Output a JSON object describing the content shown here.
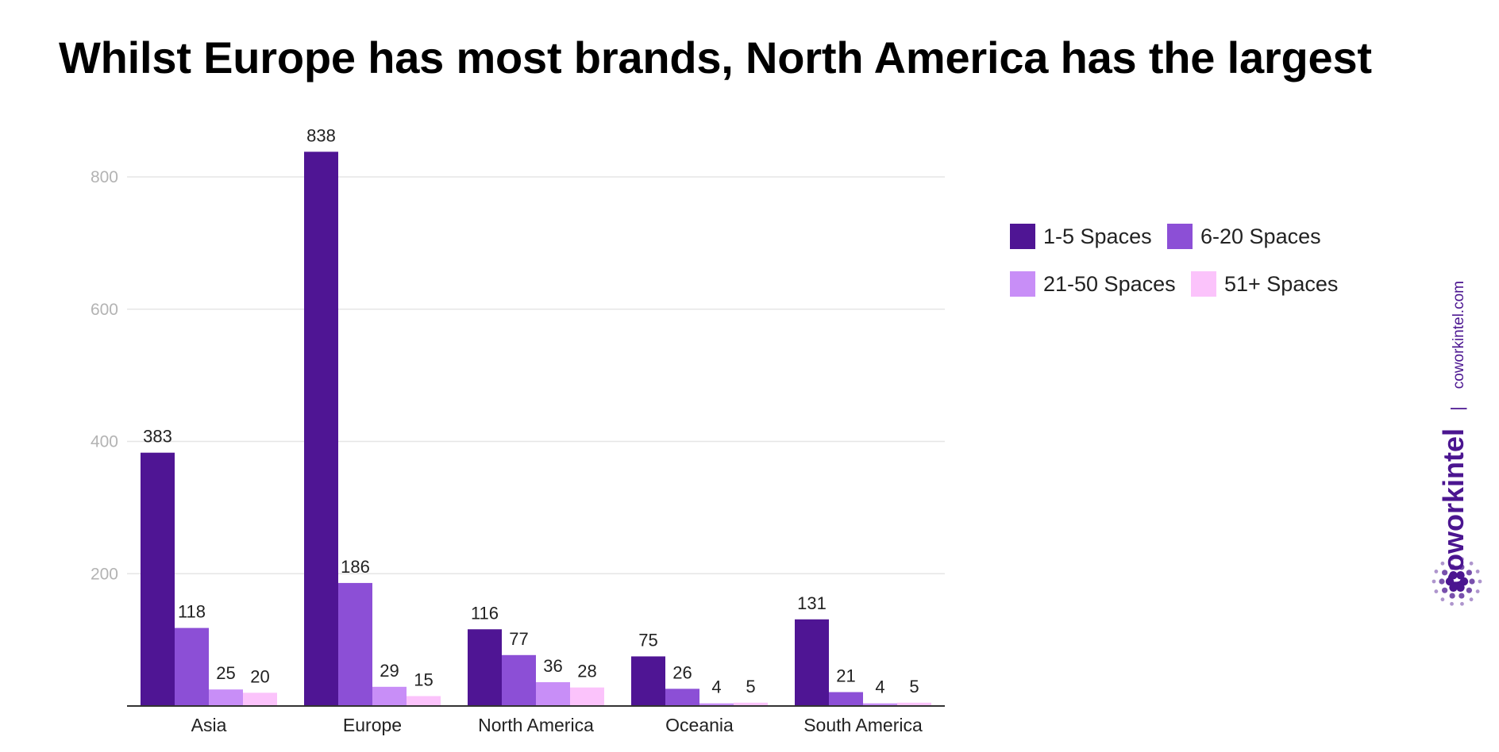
{
  "title": "Whilst Europe has most brands, North America has the largest",
  "chart_data": {
    "type": "bar",
    "title": "Whilst Europe has most brands, North America has the largest",
    "xlabel": "",
    "ylabel": "",
    "categories": [
      "Asia",
      "Europe",
      "North America",
      "Oceania",
      "South America"
    ],
    "series": [
      {
        "name": "1-5 Spaces",
        "color": "#4f1594",
        "values": [
          383,
          838,
          116,
          75,
          131
        ]
      },
      {
        "name": "6-20 Spaces",
        "color": "#8c4fd6",
        "values": [
          118,
          186,
          77,
          26,
          21
        ]
      },
      {
        "name": "21-50 Spaces",
        "color": "#c88ef7",
        "values": [
          25,
          29,
          36,
          4,
          4
        ]
      },
      {
        "name": "51+ Spaces",
        "color": "#fbc3fb",
        "values": [
          20,
          15,
          28,
          5,
          5
        ]
      }
    ],
    "yticks": [
      200,
      400,
      600,
      800
    ],
    "ylim": [
      0,
      840
    ],
    "grid": true,
    "legend": "right"
  },
  "legend": {
    "items": [
      {
        "label": "1-5 Spaces",
        "color": "#4f1594"
      },
      {
        "label": "6-20 Spaces",
        "color": "#8c4fd6"
      },
      {
        "label": "21-50 Spaces",
        "color": "#c88ef7"
      },
      {
        "label": "51+ Spaces",
        "color": "#fbc3fb"
      }
    ]
  },
  "brand": {
    "name": "coworkintel",
    "separator": "|",
    "url": "coworkintel.com",
    "color": "#4b1590",
    "icon": "sunburst-dots-logo-icon"
  }
}
